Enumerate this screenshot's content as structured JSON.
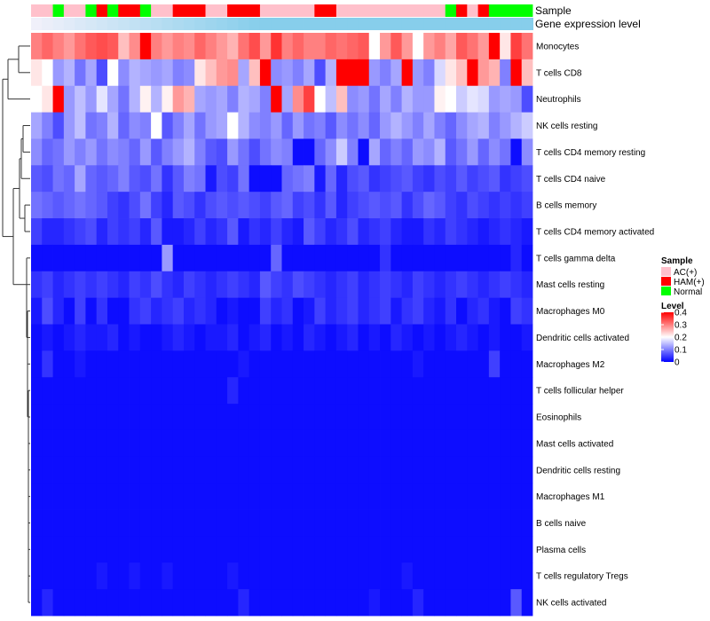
{
  "chart_data": {
    "type": "heatmap",
    "title": "",
    "annotation_labels": {
      "sample": "Sample",
      "gene_expression_level": "Gene expression level"
    },
    "rows": [
      "Monocytes",
      "T cells CD8",
      "Neutrophils",
      "NK cells resting",
      "T cells CD4 memory resting",
      "T cells CD4 naive",
      "B cells memory",
      "T cells CD4 memory activated",
      "T cells gamma delta",
      "Mast cells resting",
      "Macrophages M0",
      "Dendritic cells activated",
      "Macrophages M2",
      "T cells follicular helper",
      "Eosinophils",
      "Mast cells activated",
      "Dendritic cells resting",
      "Macrophages M1",
      "B cells naive",
      "Plasma cells",
      "T cells regulatory  Tregs",
      "NK cells activated"
    ],
    "sample_groups": [
      "AC(+)",
      "AC(+)",
      "Normal",
      "AC(+)",
      "AC(+)",
      "Normal",
      "HAM(+)",
      "Normal",
      "HAM(+)",
      "HAM(+)",
      "Normal",
      "AC(+)",
      "AC(+)",
      "HAM(+)",
      "HAM(+)",
      "HAM(+)",
      "AC(+)",
      "AC(+)",
      "HAM(+)",
      "HAM(+)",
      "HAM(+)",
      "AC(+)",
      "AC(+)",
      "AC(+)",
      "AC(+)",
      "AC(+)",
      "HAM(+)",
      "HAM(+)",
      "AC(+)",
      "AC(+)",
      "AC(+)",
      "AC(+)",
      "AC(+)",
      "AC(+)",
      "AC(+)",
      "AC(+)",
      "AC(+)",
      "AC(+)",
      "Normal",
      "HAM(+)",
      "AC(+)",
      "HAM(+)",
      "Normal",
      "Normal",
      "Normal",
      "Normal"
    ],
    "values": [
      [
        0.3,
        0.32,
        0.3,
        0.28,
        0.31,
        0.33,
        0.34,
        0.33,
        0.25,
        0.29,
        0.4,
        0.3,
        0.28,
        0.3,
        0.29,
        0.32,
        0.3,
        0.28,
        0.26,
        0.31,
        0.34,
        0.28,
        0.36,
        0.3,
        0.32,
        0.3,
        0.3,
        0.32,
        0.31,
        0.32,
        0.33,
        0.2,
        0.28,
        0.33,
        0.28,
        0.2,
        0.28,
        0.3,
        0.27,
        0.33,
        0.31,
        0.28,
        0.4,
        0.22,
        0.35,
        0.31
      ],
      [
        0.22,
        0.2,
        0.12,
        0.14,
        0.09,
        0.13,
        0.06,
        0.2,
        0.11,
        0.14,
        0.13,
        0.12,
        0.13,
        0.1,
        0.11,
        0.22,
        0.25,
        0.28,
        0.29,
        0.13,
        0.25,
        0.4,
        0.11,
        0.12,
        0.1,
        0.13,
        0.06,
        0.14,
        0.4,
        0.4,
        0.4,
        0.12,
        0.1,
        0.13,
        0.4,
        0.12,
        0.1,
        0.17,
        0.22,
        0.25,
        0.4,
        0.28,
        0.26,
        0.1,
        0.4,
        0.25
      ],
      [
        0.2,
        0.22,
        0.4,
        0.12,
        0.15,
        0.12,
        0.18,
        0.13,
        0.09,
        0.14,
        0.21,
        0.14,
        0.21,
        0.28,
        0.26,
        0.13,
        0.12,
        0.13,
        0.1,
        0.14,
        0.13,
        0.1,
        0.4,
        0.13,
        0.29,
        0.35,
        0.2,
        0.15,
        0.25,
        0.11,
        0.12,
        0.09,
        0.13,
        0.1,
        0.14,
        0.12,
        0.12,
        0.21,
        0.2,
        0.16,
        0.18,
        0.17,
        0.12,
        0.13,
        0.12,
        0.06
      ],
      [
        0.13,
        0.1,
        0.06,
        0.12,
        0.15,
        0.09,
        0.1,
        0.14,
        0.08,
        0.11,
        0.1,
        0.2,
        0.07,
        0.1,
        0.13,
        0.09,
        0.12,
        0.13,
        0.2,
        0.14,
        0.11,
        0.1,
        0.12,
        0.08,
        0.12,
        0.09,
        0.1,
        0.07,
        0.11,
        0.09,
        0.11,
        0.08,
        0.12,
        0.14,
        0.12,
        0.1,
        0.13,
        0.1,
        0.08,
        0.11,
        0.13,
        0.14,
        0.1,
        0.12,
        0.14,
        0.16
      ],
      [
        0.11,
        0.08,
        0.09,
        0.12,
        0.1,
        0.12,
        0.09,
        0.11,
        0.1,
        0.08,
        0.12,
        0.07,
        0.1,
        0.12,
        0.14,
        0.1,
        0.07,
        0.06,
        0.12,
        0.09,
        0.06,
        0.09,
        0.11,
        0.1,
        0.01,
        0.01,
        0.08,
        0.11,
        0.16,
        0.1,
        0.01,
        0.13,
        0.08,
        0.1,
        0.08,
        0.12,
        0.11,
        0.14,
        0.07,
        0.09,
        0.12,
        0.08,
        0.11,
        0.09,
        0.01,
        0.11
      ],
      [
        0.07,
        0.06,
        0.09,
        0.08,
        0.13,
        0.08,
        0.07,
        0.08,
        0.1,
        0.07,
        0.06,
        0.09,
        0.04,
        0.07,
        0.1,
        0.09,
        0.02,
        0.06,
        0.05,
        0.09,
        0.01,
        0.01,
        0.01,
        0.08,
        0.09,
        0.1,
        0.02,
        0.08,
        0.03,
        0.06,
        0.07,
        0.04,
        0.05,
        0.06,
        0.07,
        0.05,
        0.04,
        0.06,
        0.05,
        0.07,
        0.05,
        0.06,
        0.07,
        0.04,
        0.05,
        0.06
      ],
      [
        0.09,
        0.08,
        0.07,
        0.08,
        0.09,
        0.08,
        0.07,
        0.05,
        0.04,
        0.06,
        0.09,
        0.05,
        0.03,
        0.07,
        0.06,
        0.04,
        0.06,
        0.07,
        0.06,
        0.07,
        0.06,
        0.05,
        0.07,
        0.08,
        0.05,
        0.06,
        0.04,
        0.07,
        0.03,
        0.05,
        0.06,
        0.07,
        0.06,
        0.07,
        0.04,
        0.06,
        0.08,
        0.07,
        0.05,
        0.04,
        0.06,
        0.05,
        0.04,
        0.05,
        0.04,
        0.05
      ],
      [
        0.05,
        0.03,
        0.03,
        0.04,
        0.05,
        0.06,
        0.03,
        0.05,
        0.04,
        0.05,
        0.03,
        0.07,
        0.02,
        0.02,
        0.03,
        0.05,
        0.03,
        0.04,
        0.07,
        0.02,
        0.04,
        0.03,
        0.05,
        0.03,
        0.02,
        0.07,
        0.05,
        0.03,
        0.04,
        0.06,
        0.03,
        0.04,
        0.05,
        0.03,
        0.02,
        0.02,
        0.04,
        0.03,
        0.05,
        0.04,
        0.03,
        0.02,
        0.03,
        0.04,
        0.03,
        0.02
      ],
      [
        0.01,
        0.01,
        0.01,
        0.01,
        0.01,
        0.01,
        0.01,
        0.01,
        0.01,
        0.01,
        0.01,
        0.01,
        0.12,
        0.01,
        0.01,
        0.01,
        0.01,
        0.01,
        0.01,
        0.01,
        0.01,
        0.01,
        0.08,
        0.01,
        0.01,
        0.01,
        0.01,
        0.01,
        0.01,
        0.01,
        0.01,
        0.01,
        0.04,
        0.01,
        0.01,
        0.01,
        0.01,
        0.01,
        0.01,
        0.01,
        0.01,
        0.01,
        0.01,
        0.01,
        0.03,
        0.01
      ],
      [
        0.04,
        0.05,
        0.03,
        0.04,
        0.05,
        0.04,
        0.05,
        0.04,
        0.03,
        0.05,
        0.04,
        0.06,
        0.04,
        0.03,
        0.05,
        0.04,
        0.03,
        0.04,
        0.05,
        0.04,
        0.03,
        0.07,
        0.05,
        0.04,
        0.06,
        0.05,
        0.04,
        0.03,
        0.04,
        0.05,
        0.03,
        0.04,
        0.05,
        0.04,
        0.03,
        0.05,
        0.04,
        0.03,
        0.04,
        0.05,
        0.04,
        0.03,
        0.04,
        0.05,
        0.04,
        0.03
      ],
      [
        0.02,
        0.06,
        0.03,
        0.01,
        0.05,
        0.01,
        0.04,
        0.01,
        0.01,
        0.04,
        0.05,
        0.03,
        0.04,
        0.05,
        0.03,
        0.04,
        0.03,
        0.01,
        0.02,
        0.01,
        0.01,
        0.05,
        0.03,
        0.04,
        0.01,
        0.02,
        0.05,
        0.03,
        0.04,
        0.05,
        0.03,
        0.04,
        0.05,
        0.02,
        0.04,
        0.05,
        0.03,
        0.02,
        0.04,
        0.01,
        0.03,
        0.04,
        0.02,
        0.01,
        0.05,
        0.04
      ],
      [
        0.01,
        0.02,
        0.01,
        0.02,
        0.03,
        0.02,
        0.02,
        0.03,
        0.01,
        0.02,
        0.01,
        0.01,
        0.02,
        0.03,
        0.02,
        0.01,
        0.02,
        0.02,
        0.03,
        0.01,
        0.02,
        0.03,
        0.01,
        0.02,
        0.01,
        0.03,
        0.02,
        0.01,
        0.02,
        0.03,
        0.01,
        0.02,
        0.01,
        0.03,
        0.02,
        0.01,
        0.02,
        0.01,
        0.02,
        0.03,
        0.02,
        0.01,
        0.02,
        0.01,
        0.01,
        0.02
      ],
      [
        0.01,
        0.04,
        0.01,
        0.01,
        0.02,
        0.01,
        0.01,
        0.01,
        0.01,
        0.01,
        0.01,
        0.01,
        0.01,
        0.01,
        0.01,
        0.01,
        0.01,
        0.01,
        0.01,
        0.02,
        0.01,
        0.01,
        0.01,
        0.01,
        0.01,
        0.01,
        0.01,
        0.01,
        0.01,
        0.01,
        0.01,
        0.01,
        0.01,
        0.01,
        0.01,
        0.02,
        0.01,
        0.01,
        0.01,
        0.01,
        0.01,
        0.01,
        0.05,
        0.01,
        0.01,
        0.01
      ],
      [
        0.01,
        0.01,
        0.01,
        0.01,
        0.01,
        0.01,
        0.01,
        0.01,
        0.01,
        0.01,
        0.01,
        0.01,
        0.01,
        0.01,
        0.01,
        0.01,
        0.01,
        0.01,
        0.03,
        0.01,
        0.01,
        0.01,
        0.01,
        0.01,
        0.01,
        0.01,
        0.01,
        0.01,
        0.01,
        0.01,
        0.01,
        0.01,
        0.01,
        0.01,
        0.01,
        0.01,
        0.01,
        0.01,
        0.01,
        0.01,
        0.01,
        0.01,
        0.01,
        0.01,
        0.01,
        0.01
      ],
      [
        0.01,
        0.01,
        0.01,
        0.01,
        0.01,
        0.01,
        0.01,
        0.01,
        0.01,
        0.01,
        0.01,
        0.01,
        0.01,
        0.01,
        0.01,
        0.01,
        0.01,
        0.01,
        0.01,
        0.01,
        0.01,
        0.01,
        0.01,
        0.01,
        0.01,
        0.01,
        0.01,
        0.01,
        0.01,
        0.01,
        0.01,
        0.01,
        0.01,
        0.01,
        0.01,
        0.01,
        0.01,
        0.01,
        0.01,
        0.01,
        0.01,
        0.01,
        0.01,
        0.01,
        0.01,
        0.01
      ],
      [
        0.01,
        0.01,
        0.01,
        0.01,
        0.01,
        0.01,
        0.01,
        0.01,
        0.01,
        0.01,
        0.01,
        0.01,
        0.01,
        0.01,
        0.01,
        0.01,
        0.01,
        0.01,
        0.01,
        0.01,
        0.01,
        0.01,
        0.01,
        0.01,
        0.01,
        0.01,
        0.01,
        0.01,
        0.01,
        0.01,
        0.01,
        0.01,
        0.01,
        0.01,
        0.01,
        0.01,
        0.01,
        0.01,
        0.01,
        0.01,
        0.01,
        0.01,
        0.01,
        0.01,
        0.01,
        0.01
      ],
      [
        0.01,
        0.01,
        0.01,
        0.01,
        0.01,
        0.01,
        0.01,
        0.01,
        0.01,
        0.01,
        0.01,
        0.01,
        0.01,
        0.01,
        0.01,
        0.01,
        0.01,
        0.01,
        0.01,
        0.01,
        0.01,
        0.01,
        0.01,
        0.01,
        0.01,
        0.01,
        0.01,
        0.01,
        0.01,
        0.01,
        0.01,
        0.01,
        0.01,
        0.01,
        0.01,
        0.01,
        0.01,
        0.01,
        0.01,
        0.01,
        0.01,
        0.01,
        0.01,
        0.01,
        0.01,
        0.01
      ],
      [
        0.01,
        0.01,
        0.01,
        0.01,
        0.01,
        0.01,
        0.01,
        0.01,
        0.01,
        0.01,
        0.01,
        0.01,
        0.01,
        0.01,
        0.01,
        0.01,
        0.01,
        0.01,
        0.01,
        0.01,
        0.01,
        0.01,
        0.01,
        0.01,
        0.01,
        0.01,
        0.01,
        0.01,
        0.01,
        0.01,
        0.01,
        0.01,
        0.01,
        0.01,
        0.01,
        0.01,
        0.01,
        0.01,
        0.01,
        0.01,
        0.01,
        0.01,
        0.01,
        0.01,
        0.01,
        0.01
      ],
      [
        0.01,
        0.01,
        0.01,
        0.01,
        0.01,
        0.01,
        0.01,
        0.01,
        0.01,
        0.01,
        0.01,
        0.01,
        0.01,
        0.01,
        0.01,
        0.01,
        0.01,
        0.01,
        0.01,
        0.01,
        0.01,
        0.01,
        0.01,
        0.01,
        0.01,
        0.01,
        0.01,
        0.01,
        0.01,
        0.01,
        0.01,
        0.01,
        0.01,
        0.01,
        0.01,
        0.01,
        0.01,
        0.01,
        0.01,
        0.01,
        0.01,
        0.01,
        0.01,
        0.01,
        0.01,
        0.01
      ],
      [
        0.01,
        0.01,
        0.01,
        0.01,
        0.01,
        0.01,
        0.01,
        0.01,
        0.01,
        0.01,
        0.01,
        0.01,
        0.01,
        0.01,
        0.01,
        0.01,
        0.01,
        0.01,
        0.01,
        0.01,
        0.01,
        0.01,
        0.01,
        0.01,
        0.01,
        0.01,
        0.01,
        0.01,
        0.01,
        0.01,
        0.01,
        0.01,
        0.01,
        0.01,
        0.01,
        0.01,
        0.01,
        0.01,
        0.01,
        0.01,
        0.01,
        0.01,
        0.01,
        0.01,
        0.01,
        0.01
      ],
      [
        0.01,
        0.01,
        0.01,
        0.01,
        0.01,
        0.01,
        0.02,
        0.01,
        0.01,
        0.02,
        0.01,
        0.01,
        0.02,
        0.01,
        0.01,
        0.01,
        0.01,
        0.01,
        0.02,
        0.01,
        0.01,
        0.01,
        0.01,
        0.01,
        0.01,
        0.01,
        0.01,
        0.01,
        0.01,
        0.01,
        0.01,
        0.01,
        0.01,
        0.01,
        0.02,
        0.01,
        0.01,
        0.01,
        0.01,
        0.01,
        0.01,
        0.01,
        0.01,
        0.01,
        0.01,
        0.01
      ],
      [
        0.01,
        0.03,
        0.01,
        0.01,
        0.01,
        0.01,
        0.01,
        0.01,
        0.01,
        0.01,
        0.01,
        0.01,
        0.01,
        0.01,
        0.01,
        0.01,
        0.01,
        0.01,
        0.01,
        0.03,
        0.01,
        0.01,
        0.01,
        0.01,
        0.01,
        0.01,
        0.01,
        0.01,
        0.01,
        0.01,
        0.01,
        0.02,
        0.01,
        0.01,
        0.01,
        0.03,
        0.01,
        0.01,
        0.01,
        0.01,
        0.01,
        0.01,
        0.01,
        0.01,
        0.07,
        0.01
      ]
    ],
    "legend": {
      "sample_title": "Sample",
      "sample_items": [
        {
          "label": "AC(+)",
          "color": "#ffc0cb"
        },
        {
          "label": "HAM(+)",
          "color": "#ff0000"
        },
        {
          "label": "Normal",
          "color": "#00ff00"
        }
      ],
      "level_title": "Level",
      "level_ticks": [
        "0.4",
        "0.3",
        "0.2",
        "0.1",
        "0"
      ],
      "level_min": 0,
      "level_max": 0.4,
      "level_tick_values": [
        0.4,
        0.3,
        0.2,
        0.1,
        0
      ],
      "low_color": "#0000ff",
      "mid_color": "#ffffff",
      "high_color": "#ff0000"
    },
    "gene_expression_color": "#87ceeb"
  }
}
